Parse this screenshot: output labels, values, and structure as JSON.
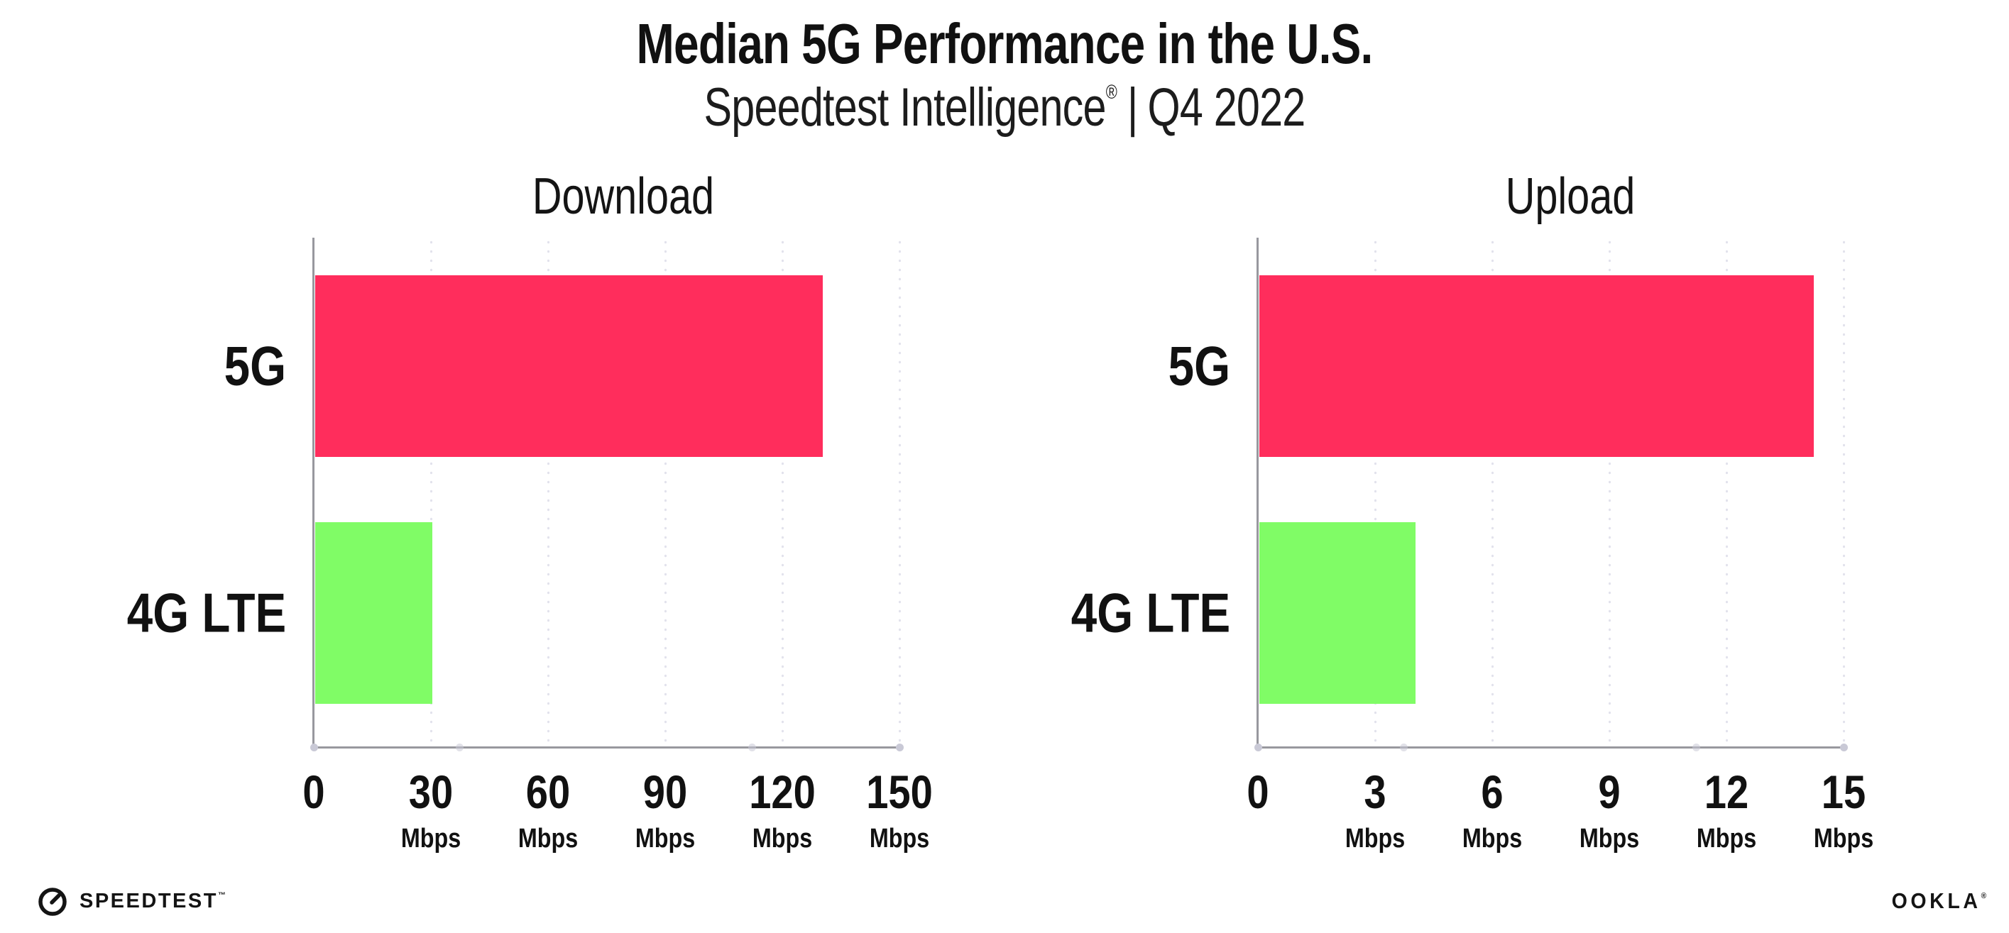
{
  "header": {
    "title": "Median 5G Performance in the U.S.",
    "subtitle_brand": "Speedtest Intelligence",
    "subtitle_reg": "®",
    "subtitle_divider": "|",
    "subtitle_period": "Q4 2022"
  },
  "footer": {
    "speedtest_label": "SPEEDTEST",
    "speedtest_mark": "™",
    "ookla_label": "OOKLA",
    "ookla_mark": "®"
  },
  "colors": {
    "bar_5g": "#FF2D5C",
    "bar_4g": "#80FC66",
    "axis": "#98989e",
    "grid_dot": "#e2e2ec",
    "endpoint_dot": "#c9c9d6",
    "text": "#111111"
  },
  "chart_data": [
    {
      "type": "bar",
      "orientation": "horizontal",
      "title": "Download",
      "categories": [
        "5G",
        "4G LTE"
      ],
      "values": [
        130,
        30
      ],
      "unit": "Mbps",
      "xlim": [
        0,
        150
      ],
      "xticks": [
        0,
        30,
        60,
        90,
        120,
        150
      ],
      "grid": "dotted-vertical",
      "bar_colors": [
        "#FF2D5C",
        "#80FC66"
      ],
      "legend": "none"
    },
    {
      "type": "bar",
      "orientation": "horizontal",
      "title": "Upload",
      "categories": [
        "5G",
        "4G LTE"
      ],
      "values": [
        14.2,
        4
      ],
      "unit": "Mbps",
      "xlim": [
        0,
        15
      ],
      "xticks": [
        0,
        3,
        6,
        9,
        12,
        15
      ],
      "grid": "dotted-vertical",
      "bar_colors": [
        "#FF2D5C",
        "#80FC66"
      ],
      "legend": "none"
    }
  ]
}
